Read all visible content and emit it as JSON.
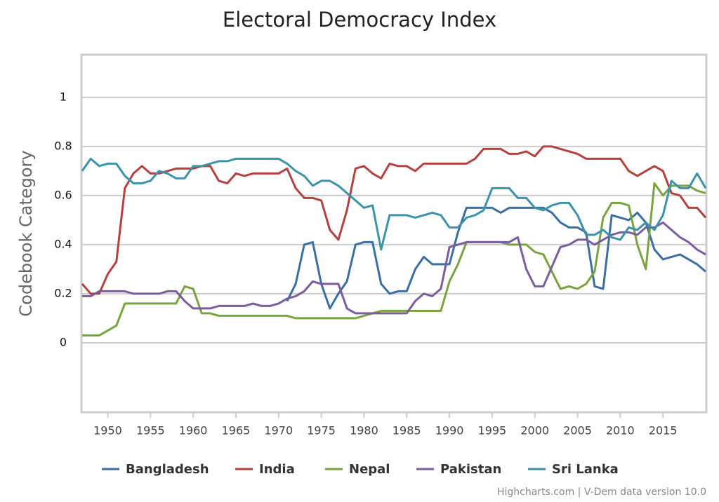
{
  "chart_data": {
    "type": "line",
    "title": "Electoral Democracy Index",
    "y_label": "Codebook Category",
    "credits": "Highcharts.com | V-Dem data version 10.0",
    "x": [
      1947,
      1948,
      1949,
      1950,
      1951,
      1952,
      1953,
      1954,
      1955,
      1956,
      1957,
      1958,
      1959,
      1960,
      1961,
      1962,
      1963,
      1964,
      1965,
      1966,
      1967,
      1968,
      1969,
      1970,
      1971,
      1972,
      1973,
      1974,
      1975,
      1976,
      1977,
      1978,
      1979,
      1980,
      1981,
      1982,
      1983,
      1984,
      1985,
      1986,
      1987,
      1988,
      1989,
      1990,
      1991,
      1992,
      1993,
      1994,
      1995,
      1996,
      1997,
      1998,
      1999,
      2000,
      2001,
      2002,
      2003,
      2004,
      2005,
      2006,
      2007,
      2008,
      2009,
      2010,
      2011,
      2012,
      2013,
      2014,
      2015,
      2016,
      2017,
      2018,
      2019,
      2020
    ],
    "xlim": [
      1947,
      2020
    ],
    "xticks": [
      1950,
      1955,
      1960,
      1965,
      1970,
      1975,
      1980,
      1985,
      1990,
      1995,
      2000,
      2005,
      2010,
      2015
    ],
    "ylim": [
      -0.283,
      1.174
    ],
    "yticks": [
      0,
      0.2,
      0.4,
      0.6,
      0.8,
      1
    ],
    "grid": true,
    "legend": "bottom",
    "series": [
      {
        "name": "Bangladesh",
        "color": "#3a6ea5",
        "values": [
          null,
          null,
          null,
          null,
          null,
          null,
          null,
          null,
          null,
          null,
          null,
          null,
          null,
          null,
          null,
          null,
          null,
          null,
          null,
          null,
          null,
          null,
          null,
          null,
          0.17,
          0.24,
          0.4,
          0.41,
          0.24,
          0.14,
          0.2,
          0.25,
          0.4,
          0.41,
          0.41,
          0.24,
          0.2,
          0.21,
          0.21,
          0.3,
          0.35,
          0.32,
          0.32,
          0.32,
          0.45,
          0.55,
          0.55,
          0.55,
          0.55,
          0.53,
          0.55,
          0.55,
          0.55,
          0.55,
          0.55,
          0.53,
          0.49,
          0.47,
          0.47,
          0.45,
          0.23,
          0.22,
          0.52,
          0.51,
          0.5,
          0.53,
          0.49,
          0.38,
          0.34,
          0.35,
          0.36,
          0.34,
          0.32,
          0.29
        ]
      },
      {
        "name": "India",
        "color": "#b5403d",
        "values": [
          0.24,
          0.2,
          0.2,
          0.28,
          0.33,
          0.63,
          0.69,
          0.72,
          0.69,
          0.69,
          0.7,
          0.71,
          0.71,
          0.71,
          0.72,
          0.72,
          0.66,
          0.65,
          0.69,
          0.68,
          0.69,
          0.69,
          0.69,
          0.69,
          0.71,
          0.63,
          0.59,
          0.59,
          0.58,
          0.46,
          0.42,
          0.54,
          0.71,
          0.72,
          0.69,
          0.67,
          0.73,
          0.72,
          0.72,
          0.7,
          0.73,
          0.73,
          0.73,
          0.73,
          0.73,
          0.73,
          0.75,
          0.79,
          0.79,
          0.79,
          0.77,
          0.77,
          0.78,
          0.76,
          0.8,
          0.8,
          0.79,
          0.78,
          0.77,
          0.75,
          0.75,
          0.75,
          0.75,
          0.75,
          0.7,
          0.68,
          0.7,
          0.72,
          0.7,
          0.61,
          0.6,
          0.55,
          0.55,
          0.51
        ]
      },
      {
        "name": "Nepal",
        "color": "#78a33e",
        "values": [
          0.03,
          0.03,
          0.03,
          0.05,
          0.07,
          0.16,
          0.16,
          0.16,
          0.16,
          0.16,
          0.16,
          0.16,
          0.23,
          0.22,
          0.12,
          0.12,
          0.11,
          0.11,
          0.11,
          0.11,
          0.11,
          0.11,
          0.11,
          0.11,
          0.11,
          0.1,
          0.1,
          0.1,
          0.1,
          0.1,
          0.1,
          0.1,
          0.1,
          0.11,
          0.12,
          0.13,
          0.13,
          0.13,
          0.13,
          0.13,
          0.13,
          0.13,
          0.13,
          0.25,
          0.32,
          0.41,
          0.41,
          0.41,
          0.41,
          0.41,
          0.4,
          0.4,
          0.4,
          0.37,
          0.36,
          0.29,
          0.22,
          0.23,
          0.22,
          0.24,
          0.29,
          0.51,
          0.57,
          0.57,
          0.56,
          0.4,
          0.3,
          0.65,
          0.6,
          0.64,
          0.64,
          0.64,
          0.62,
          0.61
        ]
      },
      {
        "name": "Pakistan",
        "color": "#7b5c9e",
        "values": [
          0.19,
          0.19,
          0.21,
          0.21,
          0.21,
          0.21,
          0.2,
          0.2,
          0.2,
          0.2,
          0.21,
          0.21,
          0.17,
          0.14,
          0.14,
          0.14,
          0.15,
          0.15,
          0.15,
          0.15,
          0.16,
          0.15,
          0.15,
          0.16,
          0.18,
          0.19,
          0.21,
          0.25,
          0.24,
          0.24,
          0.24,
          0.14,
          0.12,
          0.12,
          0.12,
          0.12,
          0.12,
          0.12,
          0.12,
          0.17,
          0.2,
          0.19,
          0.22,
          0.39,
          0.4,
          0.41,
          0.41,
          0.41,
          0.41,
          0.41,
          0.41,
          0.43,
          0.3,
          0.23,
          0.23,
          0.31,
          0.39,
          0.4,
          0.42,
          0.42,
          0.4,
          0.42,
          0.44,
          0.45,
          0.45,
          0.44,
          0.47,
          0.47,
          0.49,
          0.46,
          0.43,
          0.41,
          0.38,
          0.36
        ]
      },
      {
        "name": "Sri Lanka",
        "color": "#3a93a8",
        "values": [
          0.7,
          0.75,
          0.72,
          0.73,
          0.73,
          0.68,
          0.65,
          0.65,
          0.66,
          0.7,
          0.69,
          0.67,
          0.67,
          0.72,
          0.72,
          0.73,
          0.74,
          0.74,
          0.75,
          0.75,
          0.75,
          0.75,
          0.75,
          0.75,
          0.73,
          0.7,
          0.68,
          0.64,
          0.66,
          0.66,
          0.64,
          0.61,
          0.58,
          0.55,
          0.56,
          0.38,
          0.52,
          0.52,
          0.52,
          0.51,
          0.52,
          0.53,
          0.52,
          0.47,
          0.47,
          0.51,
          0.52,
          0.54,
          0.63,
          0.63,
          0.63,
          0.59,
          0.59,
          0.55,
          0.54,
          0.56,
          0.57,
          0.57,
          0.52,
          0.44,
          0.44,
          0.46,
          0.43,
          0.42,
          0.47,
          0.46,
          0.49,
          0.46,
          0.52,
          0.66,
          0.63,
          0.63,
          0.69,
          0.63
        ]
      }
    ]
  }
}
